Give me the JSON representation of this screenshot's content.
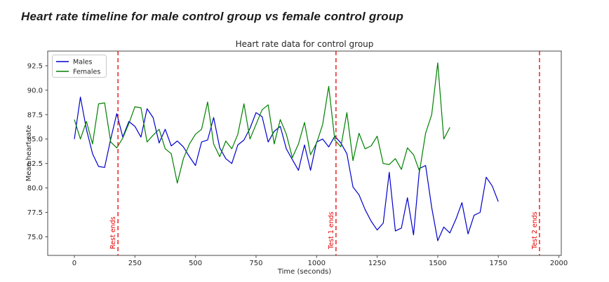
{
  "page": {
    "title": "Heart rate timeline for male control group vs female control group"
  },
  "chart_data": {
    "type": "line",
    "title": "Heart rate data for control group",
    "xlabel": "Time (seconds)",
    "ylabel": "Mean heart rate",
    "xlim": [
      -110,
      2010
    ],
    "ylim": [
      73.1,
      94.0
    ],
    "x_ticks": [
      0,
      250,
      500,
      750,
      1000,
      1250,
      1500,
      1750,
      2000
    ],
    "y_ticks": [
      75.0,
      77.5,
      80.0,
      82.5,
      85.0,
      87.5,
      90.0,
      92.5
    ],
    "grid": false,
    "legend_position": "upper left",
    "series": [
      {
        "name": "Males",
        "color": "#0000cd",
        "t_start": 0,
        "t_step": 25,
        "values": [
          85.0,
          89.3,
          86.0,
          83.5,
          82.2,
          82.1,
          85.0,
          87.6,
          85.2,
          86.8,
          86.3,
          85.2,
          88.1,
          87.2,
          84.6,
          86.0,
          84.3,
          84.8,
          84.2,
          83.2,
          82.3,
          84.7,
          84.9,
          87.2,
          84.1,
          83.0,
          82.5,
          84.4,
          84.9,
          86.1,
          87.7,
          87.3,
          84.7,
          85.8,
          86.3,
          84.0,
          82.9,
          81.8,
          84.4,
          81.8,
          84.7,
          85.0,
          84.2,
          85.3,
          84.6,
          83.5,
          80.1,
          79.3,
          77.8,
          76.6,
          75.7,
          76.4,
          81.6,
          75.6,
          75.9,
          79.0,
          75.2,
          82.0,
          82.3,
          78.0,
          74.6,
          76.0,
          75.4,
          76.8,
          78.5,
          75.3,
          77.2,
          77.5,
          81.1,
          80.2,
          78.6
        ]
      },
      {
        "name": "Females",
        "color": "#008000",
        "t_start": 0,
        "t_step": 25,
        "values": [
          87.0,
          85.0,
          86.8,
          84.5,
          88.6,
          88.7,
          84.7,
          84.1,
          85.1,
          86.6,
          88.3,
          88.2,
          84.7,
          85.4,
          86.0,
          84.0,
          83.5,
          80.5,
          83.0,
          84.5,
          85.5,
          86.0,
          88.8,
          84.5,
          83.2,
          84.8,
          84.0,
          85.5,
          88.6,
          85.0,
          86.5,
          88.0,
          88.5,
          84.5,
          87.0,
          85.5,
          83.1,
          84.5,
          86.7,
          83.4,
          84.6,
          86.5,
          90.4,
          84.9,
          84.2,
          87.7,
          82.8,
          85.6,
          84.0,
          84.3,
          85.3,
          82.5,
          82.4,
          83.0,
          81.9,
          84.1,
          83.4,
          81.7,
          85.6,
          87.5,
          92.8,
          85.0,
          86.2
        ]
      }
    ],
    "event_lines": [
      {
        "time": 180,
        "label": "Rest ends",
        "color": "#e60000",
        "style": "dashed"
      },
      {
        "time": 1080,
        "label": "Test 1 ends",
        "color": "#e60000",
        "style": "dashed"
      },
      {
        "time": 1920,
        "label": "Test 2 ends",
        "color": "#e60000",
        "style": "dashed"
      }
    ]
  },
  "colors": {
    "males_line": "#0000cd",
    "females_line": "#008000",
    "event_line": "#e60000",
    "spine": "#4a4a4a",
    "tick_text": "#262626",
    "legend_border": "#c9c9c9",
    "background": "#ffffff"
  }
}
